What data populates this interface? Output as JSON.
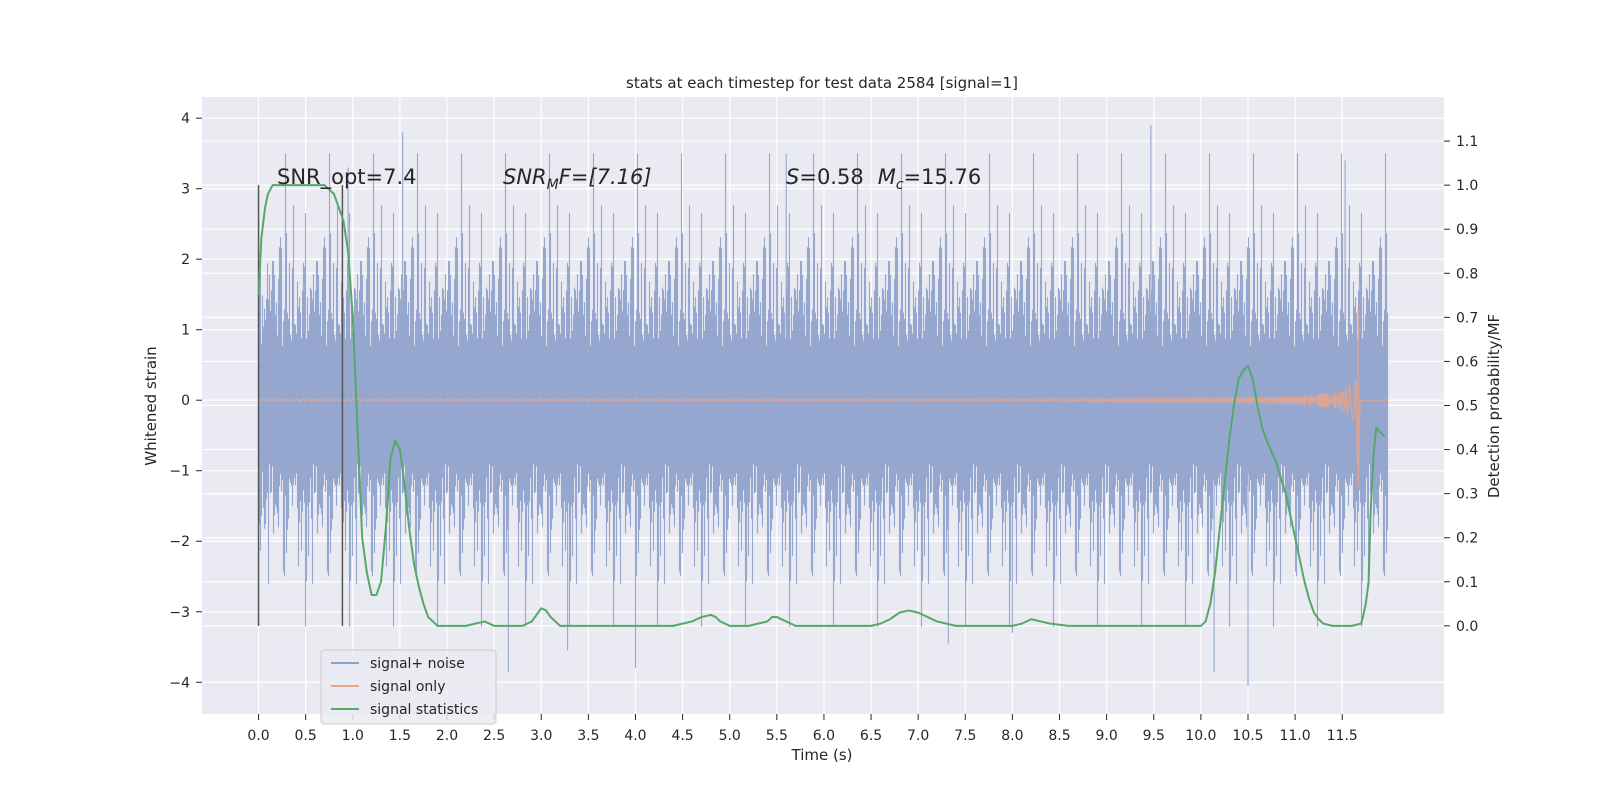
{
  "chart_data": {
    "type": "line",
    "title": "stats at each timestep for test data 2584 [signal=1]",
    "xlabel": "Time (s)",
    "ylabel": "Whitened strain",
    "ylabel_right": "Detection probability/MF",
    "xlim": [
      -0.6,
      12.58
    ],
    "ylim": [
      -4.45,
      4.3
    ],
    "ylim_right": [
      -0.2,
      1.2
    ],
    "x_ticks": [
      "0.0",
      "0.5",
      "1.0",
      "1.5",
      "2.0",
      "2.5",
      "3.0",
      "3.5",
      "4.0",
      "4.5",
      "5.0",
      "5.5",
      "6.0",
      "6.5",
      "7.0",
      "7.5",
      "8.0",
      "8.5",
      "9.0",
      "9.5",
      "10.0",
      "10.5",
      "11.0",
      "11.5"
    ],
    "y_ticks": [
      "−4",
      "−3",
      "−2",
      "−1",
      "0",
      "1",
      "2",
      "3",
      "4"
    ],
    "y_ticks_right": [
      "0.0",
      "0.1",
      "0.2",
      "0.3",
      "0.4",
      "0.5",
      "0.6",
      "0.7",
      "0.8",
      "0.9",
      "1.0",
      "1.1"
    ],
    "annotations": {
      "snr_opt": "SNR_opt=7.4",
      "snr_mf_base": "SNR",
      "snr_mf_sub": "M",
      "snr_mf_rest": "F=[7.16]",
      "s_symbol": "S",
      "s_value": "=0.58",
      "mc_symbol": "M",
      "mc_sub": "c",
      "mc_value": "=15.76"
    },
    "vertical_lines": [
      0.0,
      0.89
    ],
    "grid": true,
    "legend_position": "lower-left",
    "series": [
      {
        "name": "signal+ noise",
        "color": "#8da0cb",
        "kind": "noise",
        "x_range": [
          0.0,
          11.99
        ],
        "typical_band": [
          -1.7,
          1.7
        ],
        "notable_spikes": [
          {
            "x": 1.53,
            "y": 3.8
          },
          {
            "x": 9.47,
            "y": 3.9
          },
          {
            "x": 11.53,
            "y": 3.4
          },
          {
            "x": 2.65,
            "y": -3.85
          },
          {
            "x": 3.28,
            "y": -3.55
          },
          {
            "x": 4.0,
            "y": -3.8
          },
          {
            "x": 10.14,
            "y": -3.85
          },
          {
            "x": 10.5,
            "y": -4.05
          },
          {
            "x": 7.32,
            "y": -3.45
          },
          {
            "x": 8.0,
            "y": -3.3
          },
          {
            "x": 5.6,
            "y": 3.5
          },
          {
            "x": 0.95,
            "y": 3.3
          }
        ]
      },
      {
        "name": "signal only",
        "color": "#e8a58a",
        "kind": "chirp",
        "x_range": [
          0.0,
          11.99
        ],
        "start": 7.5,
        "merger": 11.67,
        "peak_amplitude": 1.3,
        "post_merger_low": -1.25
      },
      {
        "name": "signal statistics",
        "color": "#55a868",
        "axis": "right",
        "x": [
          0.0,
          0.03,
          0.07,
          0.1,
          0.15,
          0.22,
          0.3,
          0.4,
          0.5,
          0.6,
          0.7,
          0.75,
          0.8,
          0.85,
          0.9,
          0.95,
          1.0,
          1.05,
          1.1,
          1.15,
          1.2,
          1.25,
          1.3,
          1.35,
          1.4,
          1.45,
          1.5,
          1.55,
          1.6,
          1.65,
          1.7,
          1.75,
          1.8,
          1.85,
          1.9,
          2.0,
          2.1,
          2.2,
          2.3,
          2.4,
          2.5,
          2.6,
          2.7,
          2.8,
          2.9,
          2.95,
          3.0,
          3.05,
          3.1,
          3.15,
          3.2,
          3.4,
          3.6,
          3.8,
          4.0,
          4.2,
          4.4,
          4.5,
          4.6,
          4.7,
          4.8,
          4.85,
          4.9,
          5.0,
          5.1,
          5.2,
          5.3,
          5.4,
          5.45,
          5.5,
          5.6,
          5.7,
          5.8,
          6.0,
          6.2,
          6.4,
          6.5,
          6.6,
          6.7,
          6.8,
          6.9,
          7.0,
          7.1,
          7.2,
          7.3,
          7.4,
          7.6,
          7.8,
          8.0,
          8.1,
          8.2,
          8.3,
          8.4,
          8.6,
          8.8,
          9.0,
          9.2,
          9.4,
          9.6,
          9.8,
          10.0,
          10.05,
          10.1,
          10.15,
          10.2,
          10.25,
          10.3,
          10.35,
          10.4,
          10.45,
          10.5,
          10.55,
          10.6,
          10.65,
          10.7,
          10.8,
          10.9,
          11.0,
          11.05,
          11.1,
          11.15,
          11.2,
          11.25,
          11.3,
          11.4,
          11.5,
          11.6,
          11.7,
          11.72,
          11.75,
          11.78,
          11.8,
          11.83,
          11.86,
          11.9,
          11.95
        ],
        "y": [
          0.75,
          0.88,
          0.95,
          0.98,
          1.0,
          1.0,
          1.0,
          1.0,
          1.0,
          1.0,
          1.0,
          0.99,
          0.98,
          0.95,
          0.92,
          0.85,
          0.7,
          0.45,
          0.2,
          0.12,
          0.07,
          0.07,
          0.1,
          0.22,
          0.38,
          0.42,
          0.4,
          0.32,
          0.22,
          0.14,
          0.09,
          0.05,
          0.02,
          0.01,
          0.0,
          0.0,
          0.0,
          0.0,
          0.005,
          0.01,
          0.0,
          0.0,
          0.0,
          0.0,
          0.01,
          0.025,
          0.04,
          0.035,
          0.02,
          0.01,
          0.0,
          0.0,
          0.0,
          0.0,
          0.0,
          0.0,
          0.0,
          0.005,
          0.01,
          0.02,
          0.025,
          0.02,
          0.01,
          0.0,
          0.0,
          0.0,
          0.005,
          0.01,
          0.02,
          0.02,
          0.01,
          0.0,
          0.0,
          0.0,
          0.0,
          0.0,
          0.0,
          0.005,
          0.015,
          0.03,
          0.035,
          0.03,
          0.02,
          0.01,
          0.005,
          0.0,
          0.0,
          0.0,
          0.0,
          0.005,
          0.015,
          0.01,
          0.005,
          0.0,
          0.0,
          0.0,
          0.0,
          0.0,
          0.0,
          0.0,
          0.0,
          0.01,
          0.05,
          0.12,
          0.22,
          0.32,
          0.42,
          0.5,
          0.56,
          0.58,
          0.59,
          0.56,
          0.5,
          0.45,
          0.42,
          0.37,
          0.3,
          0.2,
          0.15,
          0.1,
          0.06,
          0.03,
          0.015,
          0.005,
          0.0,
          0.0,
          0.0,
          0.005,
          0.02,
          0.05,
          0.1,
          0.25,
          0.38,
          0.45,
          0.44,
          0.43
        ]
      }
    ]
  }
}
